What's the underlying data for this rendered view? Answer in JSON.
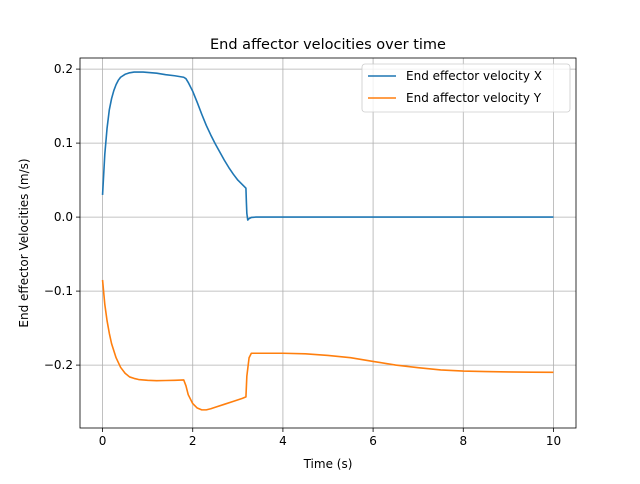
{
  "chart_data": {
    "type": "line",
    "title": "End affector velocities over time",
    "xlabel": "Time (s)",
    "ylabel": "End effector Velocities (m/s)",
    "xlim": [
      -0.5,
      10.5
    ],
    "ylim": [
      -0.285,
      0.215
    ],
    "x_ticks": [
      0,
      2,
      4,
      6,
      8,
      10
    ],
    "x_tick_labels": [
      "0",
      "2",
      "4",
      "6",
      "8",
      "10"
    ],
    "y_ticks": [
      -0.2,
      -0.1,
      0.0,
      0.1,
      0.2
    ],
    "y_tick_labels": [
      "−0.2",
      "−0.1",
      "0.0",
      "0.1",
      "0.2"
    ],
    "grid": true,
    "legend_position": "top-right",
    "series": [
      {
        "name": "End effector velocity X",
        "color": "#1f77b4",
        "x": [
          0.0,
          0.05,
          0.1,
          0.15,
          0.2,
          0.25,
          0.3,
          0.35,
          0.4,
          0.5,
          0.6,
          0.7,
          0.8,
          0.9,
          1.0,
          1.2,
          1.4,
          1.6,
          1.8,
          1.85,
          1.9,
          2.0,
          2.1,
          2.2,
          2.3,
          2.4,
          2.5,
          2.6,
          2.7,
          2.8,
          2.9,
          3.0,
          3.1,
          3.18,
          3.19,
          3.2,
          3.22,
          3.25,
          3.3,
          3.4,
          3.5,
          4.0,
          5.0,
          6.0,
          7.0,
          8.0,
          9.0,
          10.0
        ],
        "y": [
          0.03,
          0.085,
          0.12,
          0.145,
          0.16,
          0.171,
          0.179,
          0.185,
          0.189,
          0.193,
          0.195,
          0.196,
          0.196,
          0.196,
          0.1955,
          0.1945,
          0.1925,
          0.191,
          0.189,
          0.187,
          0.182,
          0.17,
          0.155,
          0.139,
          0.124,
          0.111,
          0.099,
          0.088,
          0.077,
          0.067,
          0.058,
          0.05,
          0.044,
          0.039,
          0.02,
          0.005,
          -0.004,
          -0.002,
          -0.0005,
          0.0,
          0.0,
          0.0,
          0.0,
          0.0,
          0.0,
          0.0,
          0.0,
          0.0
        ]
      },
      {
        "name": "End affector velocity Y",
        "color": "#ff7f0e",
        "x": [
          0.0,
          0.05,
          0.1,
          0.15,
          0.2,
          0.3,
          0.4,
          0.5,
          0.6,
          0.7,
          0.8,
          1.0,
          1.2,
          1.4,
          1.6,
          1.8,
          1.85,
          1.9,
          2.0,
          2.1,
          2.2,
          2.3,
          2.4,
          2.5,
          2.7,
          2.9,
          3.1,
          3.18,
          3.2,
          3.25,
          3.3,
          3.5,
          4.0,
          4.5,
          5.0,
          5.5,
          6.0,
          6.5,
          7.0,
          7.5,
          8.0,
          8.5,
          9.0,
          9.5,
          10.0
        ],
        "y": [
          -0.085,
          -0.118,
          -0.14,
          -0.157,
          -0.171,
          -0.19,
          -0.203,
          -0.211,
          -0.216,
          -0.218,
          -0.2195,
          -0.2205,
          -0.221,
          -0.2208,
          -0.2205,
          -0.22,
          -0.228,
          -0.24,
          -0.252,
          -0.258,
          -0.2605,
          -0.2605,
          -0.259,
          -0.257,
          -0.253,
          -0.249,
          -0.245,
          -0.243,
          -0.215,
          -0.19,
          -0.184,
          -0.184,
          -0.184,
          -0.1848,
          -0.187,
          -0.19,
          -0.195,
          -0.2,
          -0.2035,
          -0.2065,
          -0.208,
          -0.2088,
          -0.2093,
          -0.2096,
          -0.2098
        ]
      }
    ]
  }
}
